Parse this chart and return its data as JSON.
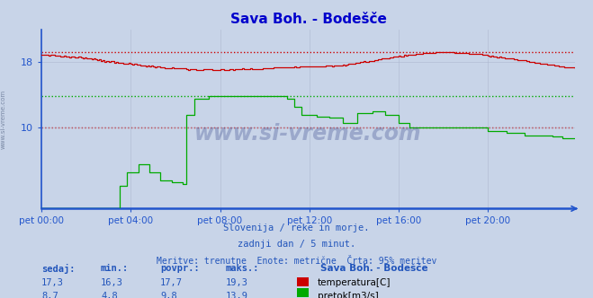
{
  "title": "Sava Boh. - Bodešče",
  "title_color": "#0000cc",
  "bg_color": "#c8d4e8",
  "plot_bg_color": "#c8d4e8",
  "axis_color": "#2255cc",
  "grid_color": "#aab4cc",
  "temp_color": "#cc0000",
  "flow_color": "#00aa00",
  "temp_max_line": 19.3,
  "flow_avg_line": 13.9,
  "dotted_red_1": 19.3,
  "dotted_red_2": 10.0,
  "dotted_green": 13.9,
  "x_labels": [
    "pet 00:00",
    "pet 04:00",
    "pet 08:00",
    "pet 12:00",
    "pet 16:00",
    "pet 20:00"
  ],
  "x_ticks_idx": [
    0,
    48,
    96,
    144,
    192,
    240
  ],
  "n_points": 288,
  "ylim_min": 0,
  "ylim_max": 22,
  "yticks": [
    10,
    18
  ],
  "watermark": "www.si-vreme.com",
  "watermark_color": "#334488",
  "watermark_alpha": 0.3,
  "sub1": "Slovenija / reke in morje.",
  "sub2": "zadnji dan / 5 minut.",
  "sub3": "Meritve: trenutne  Enote: metrične  Črta: 95% meritev",
  "sub_color": "#2255bb",
  "legend_title": "Sava Boh. - Bodešče",
  "legend_temp": "temperatura[C]",
  "legend_flow": "pretok[m3/s]",
  "stats_headers": [
    "sedaj:",
    "min.:",
    "povpr.:",
    "maks.:"
  ],
  "stats_temp": [
    17.3,
    16.3,
    17.7,
    19.3
  ],
  "stats_flow": [
    8.7,
    4.8,
    9.8,
    13.9
  ],
  "stats_color": "#2255bb",
  "label_color": "#2255cc"
}
